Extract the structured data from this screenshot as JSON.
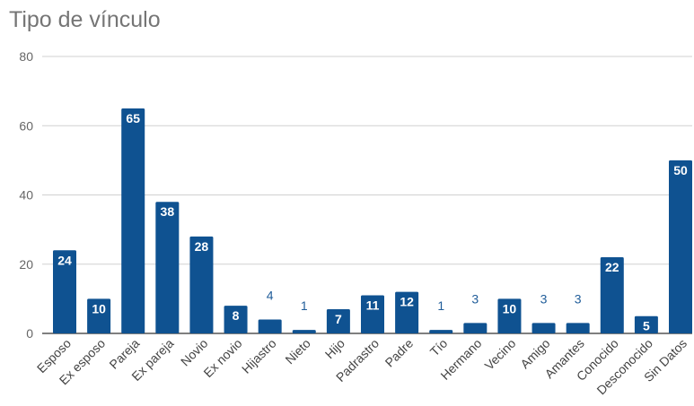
{
  "chart_data": {
    "type": "bar",
    "title": "Tipo de vínculo",
    "categories": [
      "Esposo",
      "Ex esposo",
      "Pareja",
      "Ex pareja",
      "Novio",
      "Ex novio",
      "Hijastro",
      "Nieto",
      "Hijo",
      "Padrastro",
      "Padre",
      "Tío",
      "Hermano",
      "Vecino",
      "Amigo",
      "Amantes",
      "Conocido",
      "Desconocido",
      "Sin Datos"
    ],
    "values": [
      24,
      10,
      65,
      38,
      28,
      8,
      4,
      1,
      7,
      11,
      12,
      1,
      3,
      10,
      3,
      3,
      22,
      5,
      50
    ],
    "ylim": [
      0,
      80
    ],
    "yticks": [
      0,
      20,
      40,
      60,
      80
    ],
    "grid": true,
    "legend": "none",
    "colors": {
      "bar": "#0f5291",
      "outside_label": "#1f5c99",
      "grid": "#d0d0d0",
      "axis": "#333333"
    }
  }
}
